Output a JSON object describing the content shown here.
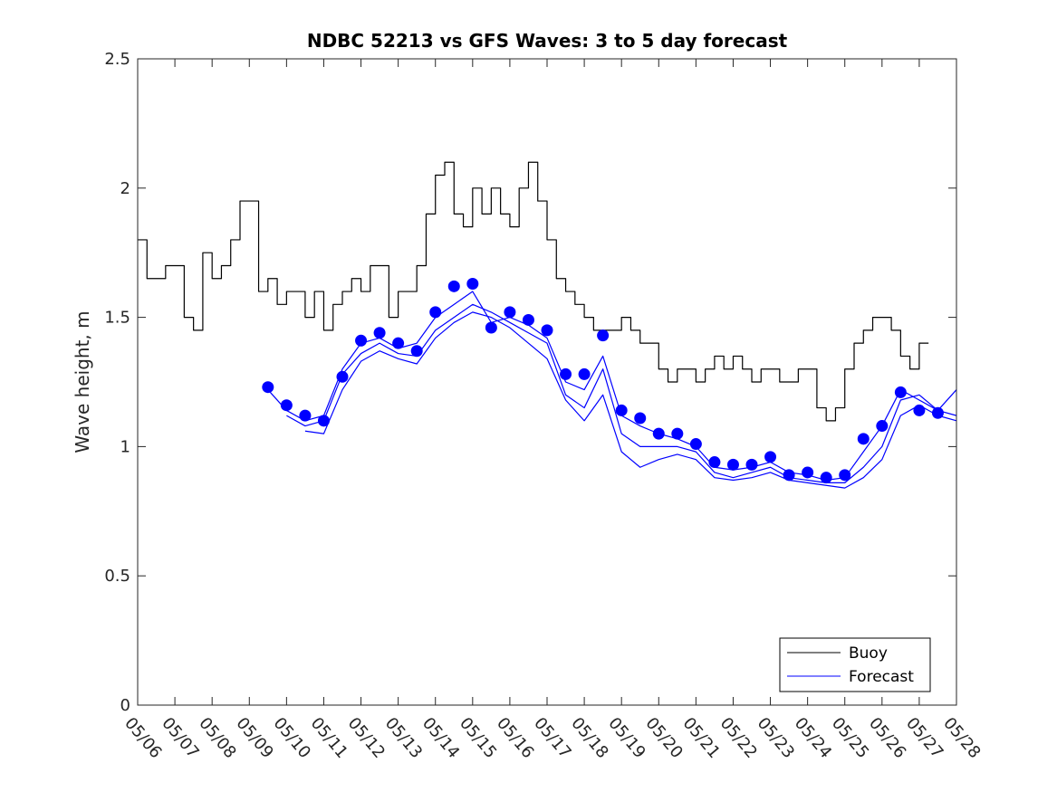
{
  "chart_data": {
    "type": "line",
    "title": "NDBC 52213 vs GFS Waves: 3 to 5 day forecast",
    "ylabel": "Wave height, m",
    "xlabel": "",
    "ylim": [
      0,
      2.5
    ],
    "yticks": [
      0,
      0.5,
      1,
      1.5,
      2,
      2.5
    ],
    "ytick_labels": [
      "0",
      "0.5",
      "1",
      "1.5",
      "2",
      "2.5"
    ],
    "xlim": [
      0,
      22
    ],
    "xtick_labels": [
      "05/06",
      "05/07",
      "05/08",
      "05/09",
      "05/10",
      "05/11",
      "05/12",
      "05/13",
      "05/14",
      "05/15",
      "05/16",
      "05/17",
      "05/18",
      "05/19",
      "05/20",
      "05/21",
      "05/22",
      "05/23",
      "05/24",
      "05/25",
      "05/26",
      "05/27",
      "05/28"
    ],
    "grid": false,
    "legend_position": "bottom-right",
    "colors": {
      "buoy": "#000000",
      "forecast": "#0000ff"
    },
    "series": [
      {
        "name": "Buoy",
        "style": "line",
        "x": [
          0,
          0.25,
          0.5,
          0.75,
          1,
          1.25,
          1.5,
          1.75,
          2,
          2.25,
          2.5,
          2.75,
          3,
          3.25,
          3.5,
          3.75,
          4,
          4.25,
          4.5,
          4.75,
          5,
          5.25,
          5.5,
          5.75,
          6,
          6.25,
          6.5,
          6.75,
          7,
          7.25,
          7.5,
          7.75,
          8,
          8.25,
          8.5,
          8.75,
          9,
          9.25,
          9.5,
          9.75,
          10,
          10.25,
          10.5,
          10.75,
          11,
          11.25,
          11.5,
          11.75,
          12,
          12.25,
          12.5,
          12.75,
          13,
          13.25,
          13.5,
          13.75,
          14,
          14.25,
          14.5,
          14.75,
          15,
          15.25,
          15.5,
          15.75,
          16,
          16.25,
          16.5,
          16.75,
          17,
          17.25,
          17.5,
          17.75,
          18,
          18.25,
          18.5,
          18.75,
          19,
          19.25,
          19.5,
          19.75,
          20,
          20.25,
          20.5,
          20.75,
          21,
          21.25
        ],
        "y": [
          1.8,
          1.65,
          1.65,
          1.7,
          1.7,
          1.5,
          1.45,
          1.75,
          1.65,
          1.7,
          1.8,
          1.95,
          1.95,
          1.6,
          1.65,
          1.55,
          1.6,
          1.6,
          1.5,
          1.6,
          1.45,
          1.55,
          1.6,
          1.65,
          1.6,
          1.7,
          1.7,
          1.5,
          1.6,
          1.6,
          1.7,
          1.9,
          2.05,
          2.1,
          1.9,
          1.85,
          2.0,
          1.9,
          2.0,
          1.9,
          1.85,
          2.0,
          2.1,
          1.95,
          1.8,
          1.65,
          1.6,
          1.55,
          1.5,
          1.45,
          1.45,
          1.45,
          1.5,
          1.45,
          1.4,
          1.4,
          1.3,
          1.25,
          1.3,
          1.3,
          1.25,
          1.3,
          1.35,
          1.3,
          1.35,
          1.3,
          1.25,
          1.3,
          1.3,
          1.25,
          1.25,
          1.3,
          1.3,
          1.15,
          1.1,
          1.15,
          1.3,
          1.4,
          1.45,
          1.5,
          1.5,
          1.45,
          1.35,
          1.3,
          1.4,
          1.4
        ]
      },
      {
        "name": "Forecast",
        "style": "markers",
        "x": [
          3.5,
          4,
          4.5,
          5,
          5.5,
          6,
          6.5,
          7,
          7.5,
          8,
          8.5,
          9,
          9.5,
          10,
          10.5,
          11,
          11.5,
          12,
          12.5,
          13,
          13.5,
          14,
          14.5,
          15,
          15.5,
          16,
          16.5,
          17,
          17.5,
          18,
          18.5,
          19,
          19.5,
          20,
          20.5,
          21,
          21.5
        ],
        "y": [
          1.23,
          1.16,
          1.12,
          1.1,
          1.27,
          1.41,
          1.44,
          1.4,
          1.37,
          1.52,
          1.62,
          1.63,
          1.46,
          1.52,
          1.49,
          1.45,
          1.28,
          1.28,
          1.43,
          1.14,
          1.11,
          1.05,
          1.05,
          1.01,
          0.94,
          0.93,
          0.93,
          0.96,
          0.89,
          0.9,
          0.88,
          0.89,
          1.03,
          1.08,
          1.21,
          1.14,
          1.13
        ]
      },
      {
        "style": "line",
        "x": [
          3.5,
          4,
          4.5,
          5,
          5.5,
          6,
          6.5,
          7,
          7.5,
          8,
          8.5,
          9,
          9.5,
          10,
          10.5,
          11,
          11.5,
          12,
          12.5,
          13,
          13.5,
          14,
          14.5,
          15,
          15.5,
          16,
          16.5,
          17,
          17.5,
          18,
          18.5,
          19,
          19.5,
          20,
          20.5,
          21,
          21.5,
          22
        ],
        "y": [
          1.22,
          1.14,
          1.1,
          1.12,
          1.3,
          1.4,
          1.42,
          1.38,
          1.4,
          1.5,
          1.55,
          1.6,
          1.48,
          1.5,
          1.47,
          1.42,
          1.25,
          1.22,
          1.35,
          1.12,
          1.08,
          1.05,
          1.03,
          1.0,
          0.92,
          0.91,
          0.92,
          0.94,
          0.9,
          0.89,
          0.87,
          0.88,
          0.98,
          1.08,
          1.22,
          1.18,
          1.14,
          1.22
        ]
      },
      {
        "style": "line",
        "x": [
          4,
          4.5,
          5,
          5.5,
          6,
          6.5,
          7,
          7.5,
          8,
          8.5,
          9,
          9.5,
          10,
          10.5,
          11,
          11.5,
          12,
          12.5,
          13,
          13.5,
          14,
          14.5,
          15,
          15.5,
          16,
          16.5,
          17,
          17.5,
          18,
          18.5,
          19,
          19.5,
          20,
          20.5,
          21,
          21.5,
          22
        ],
        "y": [
          1.12,
          1.08,
          1.1,
          1.28,
          1.36,
          1.4,
          1.36,
          1.35,
          1.45,
          1.5,
          1.55,
          1.52,
          1.48,
          1.44,
          1.4,
          1.2,
          1.15,
          1.3,
          1.05,
          1.0,
          1.0,
          1.0,
          0.98,
          0.9,
          0.88,
          0.9,
          0.92,
          0.88,
          0.87,
          0.86,
          0.86,
          0.92,
          1.0,
          1.18,
          1.2,
          1.14,
          1.12
        ]
      },
      {
        "style": "line",
        "x": [
          4.5,
          5,
          5.5,
          6,
          6.5,
          7,
          7.5,
          8,
          8.5,
          9,
          9.5,
          10,
          10.5,
          11,
          11.5,
          12,
          12.5,
          13,
          13.5,
          14,
          14.5,
          15,
          15.5,
          16,
          16.5,
          17,
          17.5,
          18,
          18.5,
          19,
          19.5,
          20,
          20.5,
          21,
          21.5,
          22
        ],
        "y": [
          1.06,
          1.05,
          1.22,
          1.33,
          1.37,
          1.34,
          1.32,
          1.42,
          1.48,
          1.52,
          1.5,
          1.46,
          1.4,
          1.34,
          1.18,
          1.1,
          1.2,
          0.98,
          0.92,
          0.95,
          0.97,
          0.95,
          0.88,
          0.87,
          0.88,
          0.9,
          0.87,
          0.86,
          0.85,
          0.84,
          0.88,
          0.95,
          1.12,
          1.16,
          1.12,
          1.1
        ]
      }
    ]
  }
}
